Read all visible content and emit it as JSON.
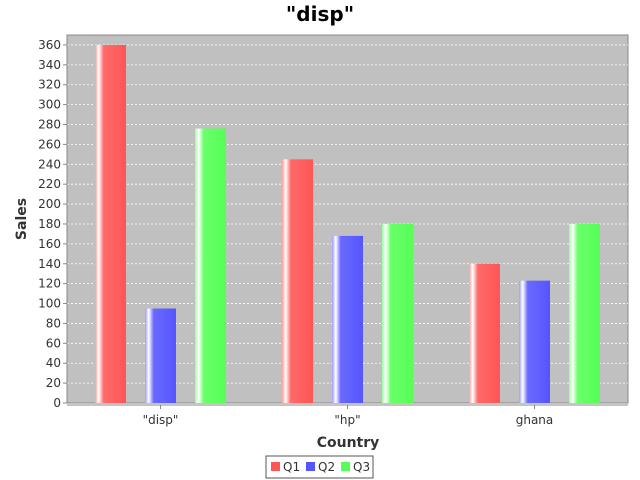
{
  "chart_data": {
    "type": "bar",
    "title": "\"disp\"",
    "xlabel": "Country",
    "ylabel": "Sales",
    "categories": [
      "\"disp\"",
      "\"hp\"",
      "ghana"
    ],
    "series": [
      {
        "name": "Q1",
        "values": [
          360,
          245,
          140
        ],
        "color": "#ff5555"
      },
      {
        "name": "Q2",
        "values": [
          95,
          168,
          123
        ],
        "color": "#5555ff"
      },
      {
        "name": "Q3",
        "values": [
          276,
          180,
          180
        ],
        "color": "#55ff55"
      }
    ],
    "ylim": [
      0,
      370
    ],
    "yticks": [
      0,
      20,
      40,
      60,
      80,
      100,
      120,
      140,
      160,
      180,
      200,
      220,
      240,
      260,
      280,
      300,
      320,
      340,
      360
    ],
    "grid": true,
    "legend_position": "bottom",
    "plot_background": "#c0c0c0"
  }
}
